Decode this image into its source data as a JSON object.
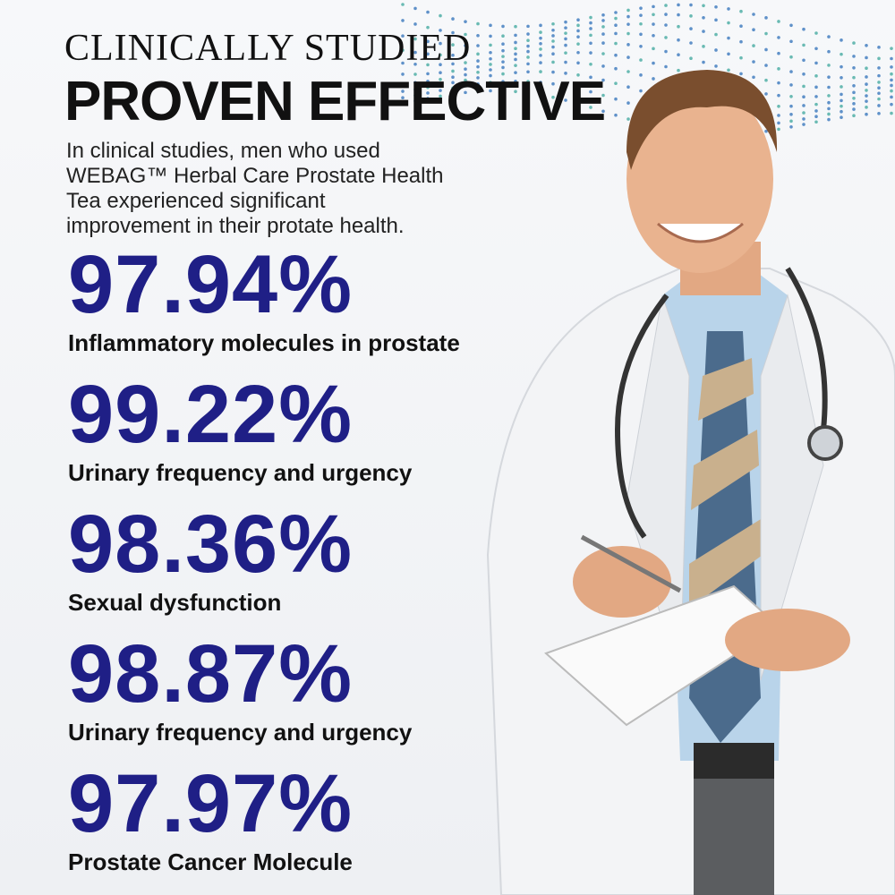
{
  "header": {
    "kicker": "CLINICALLY  STUDIED",
    "title": "PROVEN EFFECTIVE"
  },
  "intro": [
    "In clinical studies, men who used",
    "WEBAG™ Herbal Care Prostate Health",
    "Tea experienced significant",
    "improvement in their protate health."
  ],
  "stats": [
    {
      "value": "97.94%",
      "label": "Inflammatory molecules in prostate"
    },
    {
      "value": "99.22%",
      "label": "Urinary frequency and urgency"
    },
    {
      "value": "98.36%",
      "label": "Sexual dysfunction"
    },
    {
      "value": "98.87%",
      "label": "Urinary frequency and urgency"
    },
    {
      "value": "97.97%",
      "label": "Prostate Cancer Molecule"
    }
  ]
}
